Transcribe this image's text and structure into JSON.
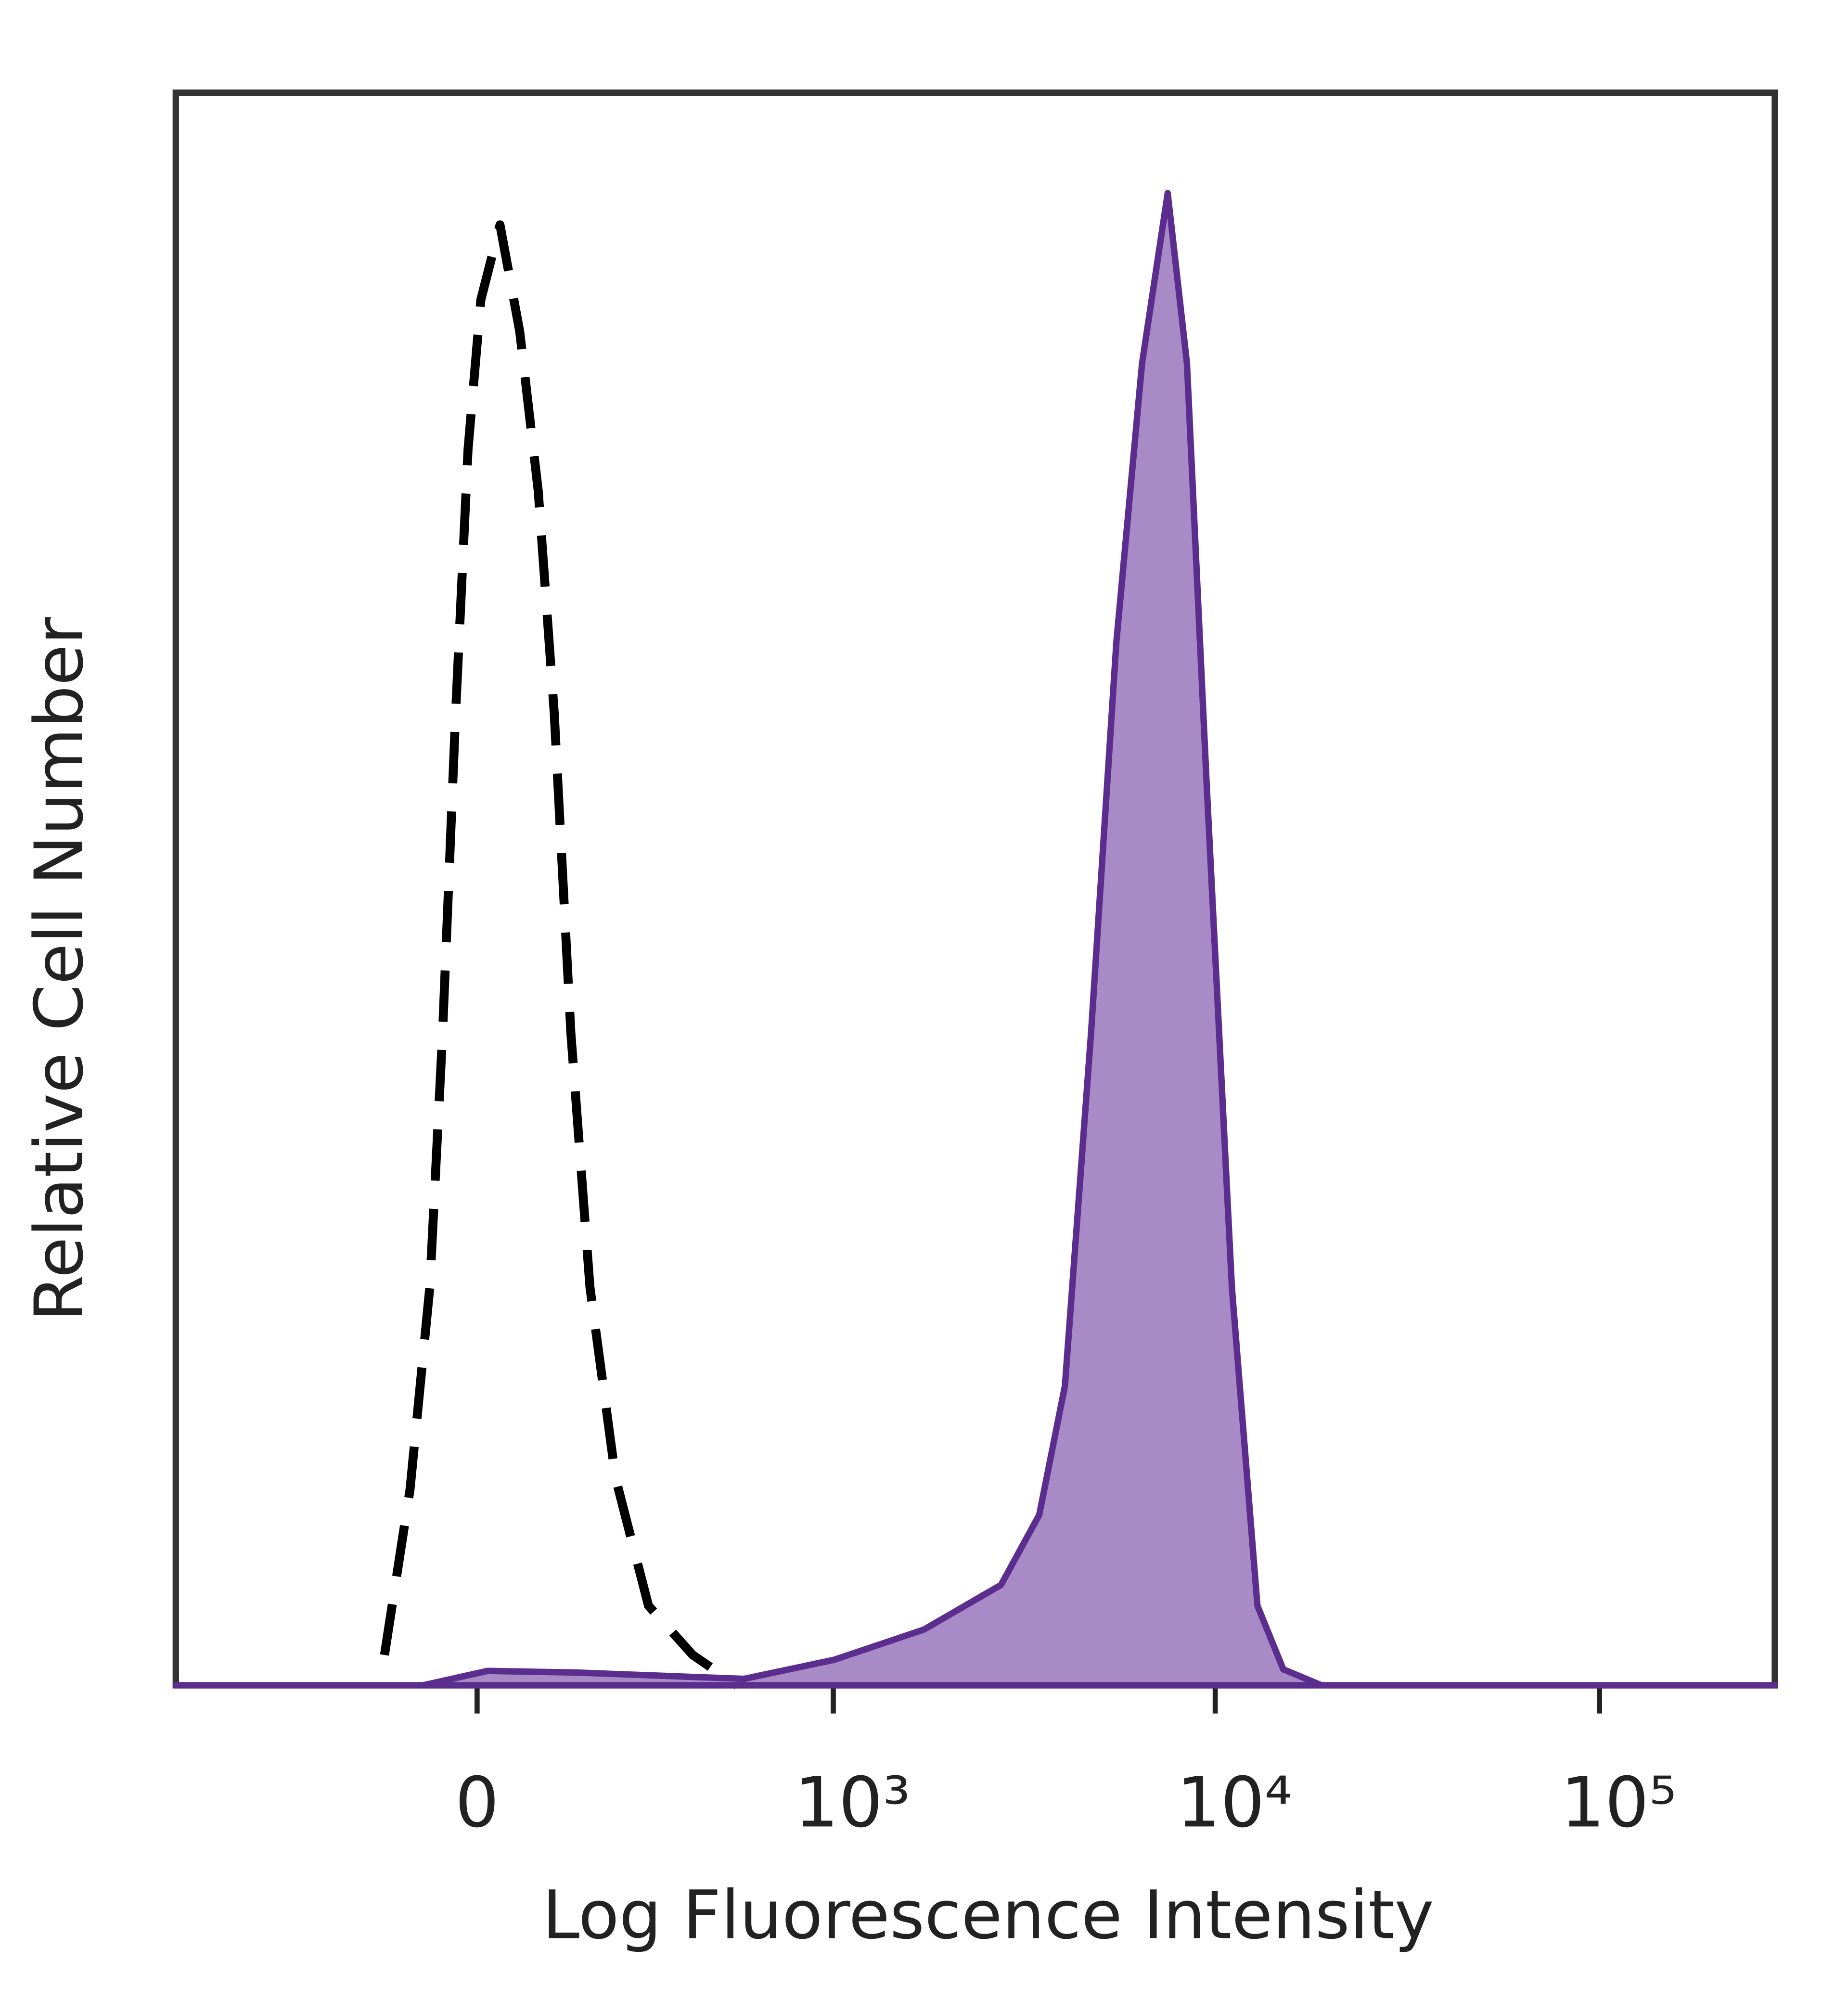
{
  "chart_data": {
    "type": "histogram-overlay",
    "xlabel": "Log Fluorescence Intensity",
    "ylabel": "Relative Cell Number",
    "xscale": "arcsinh",
    "xlim": [
      -710,
      286000
    ],
    "ylim": [
      0,
      100
    ],
    "xticks": [
      {
        "value": 0,
        "label": "0"
      },
      {
        "value": 1000,
        "label": "10³"
      },
      {
        "value": 10000,
        "label": "10⁴"
      },
      {
        "value": 100000,
        "label": "10⁵"
      }
    ],
    "series": [
      {
        "color": "#000000",
        "line_style": "dashed",
        "x": [
          -140,
          -99,
          -69,
          -50,
          -31,
          -13,
          5.5,
          33,
          62,
          90,
          115,
          142,
          175,
          223,
          292,
          404,
          545
        ],
        "values": [
          1.9,
          12.3,
          25,
          41,
          61,
          77.6,
          87,
          91.7,
          85,
          75,
          61,
          41,
          25,
          13,
          5,
          1.9,
          0
        ]
      },
      {
        "color": "#5b2d8e",
        "fill": "#a88bc6",
        "x": [
          -710,
          -79,
          15,
          153,
          570,
          1006,
          1737,
          2765,
          3480,
          4060,
          4750,
          5530,
          6450,
          7520,
          8440,
          9480,
          11050,
          12880,
          15040,
          18920,
          286000
        ],
        "values": [
          0,
          0,
          0.9,
          0.8,
          0.4,
          1.6,
          3.5,
          6.3,
          10.7,
          18.8,
          41,
          65.5,
          83,
          93.7,
          83,
          57,
          25,
          5,
          1,
          0,
          0
        ]
      }
    ]
  }
}
